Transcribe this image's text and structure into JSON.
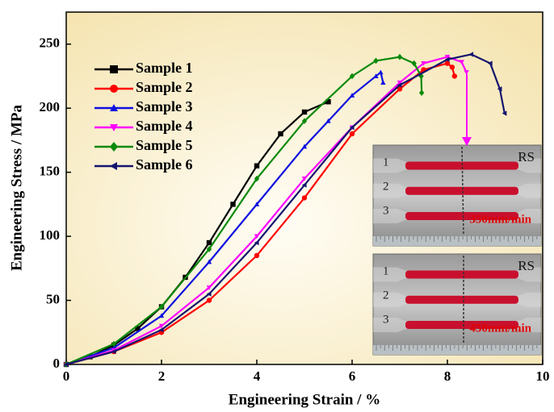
{
  "chart_data": {
    "type": "line",
    "x_label": "Engineering Strain / %",
    "y_label": "Engineering Stress / MPa",
    "xlim": [
      0,
      10
    ],
    "ylim": [
      0,
      275
    ],
    "xticks": [
      0,
      2,
      4,
      6,
      8,
      10
    ],
    "yticks": [
      0,
      50,
      100,
      150,
      200,
      250
    ],
    "series": [
      {
        "name": "Sample 1",
        "color": "#000000",
        "marker": "square",
        "x": [
          0,
          0.5,
          1,
          1.5,
          2,
          2.5,
          3,
          3.5,
          4,
          4.5,
          5,
          5.5
        ],
        "values": [
          0,
          6,
          15,
          28,
          45,
          68,
          95,
          125,
          155,
          180,
          197,
          205
        ]
      },
      {
        "name": "Sample 2",
        "color": "#ff0000",
        "marker": "circle",
        "x": [
          0,
          1,
          2,
          3,
          4,
          5,
          6,
          7,
          7.5,
          8,
          8.1,
          8.15
        ],
        "values": [
          0,
          10,
          25,
          50,
          85,
          130,
          180,
          215,
          230,
          235,
          232,
          225
        ]
      },
      {
        "name": "Sample 3",
        "color": "#1010e0",
        "marker": "triangle-up",
        "x": [
          0,
          1,
          2,
          3,
          4,
          5,
          5.5,
          6,
          6.5,
          6.6,
          6.65
        ],
        "values": [
          0,
          13,
          38,
          80,
          125,
          170,
          190,
          210,
          225,
          228,
          220
        ]
      },
      {
        "name": "Sample 4",
        "color": "#ff00ff",
        "marker": "triangle-down",
        "x": [
          0,
          1,
          2,
          3,
          4,
          5,
          6,
          7,
          7.5,
          8,
          8.3,
          8.4
        ],
        "values": [
          0,
          11,
          30,
          60,
          100,
          145,
          185,
          220,
          235,
          240,
          236,
          228
        ]
      },
      {
        "name": "Sample 5",
        "color": "#0b8a0b",
        "marker": "diamond",
        "x": [
          0,
          1,
          2,
          3,
          4,
          5,
          6,
          6.5,
          7,
          7.3,
          7.45,
          7.46
        ],
        "values": [
          0,
          16,
          45,
          90,
          145,
          190,
          225,
          237,
          240,
          235,
          225,
          212
        ]
      },
      {
        "name": "Sample 6",
        "color": "#141470",
        "marker": "triangle-left",
        "x": [
          0,
          1,
          2,
          3,
          4,
          5,
          6,
          7,
          8,
          8.5,
          8.9,
          9.1,
          9.2
        ],
        "values": [
          0,
          10,
          27,
          55,
          95,
          140,
          185,
          218,
          238,
          242,
          235,
          215,
          196
        ]
      }
    ],
    "insets": [
      {
        "rows": [
          "1",
          "2",
          "3"
        ],
        "tag": "RS",
        "speed": "350mm/min"
      },
      {
        "rows": [
          "1",
          "2",
          "3"
        ],
        "tag": "RS",
        "speed": "450mm/min"
      }
    ]
  }
}
